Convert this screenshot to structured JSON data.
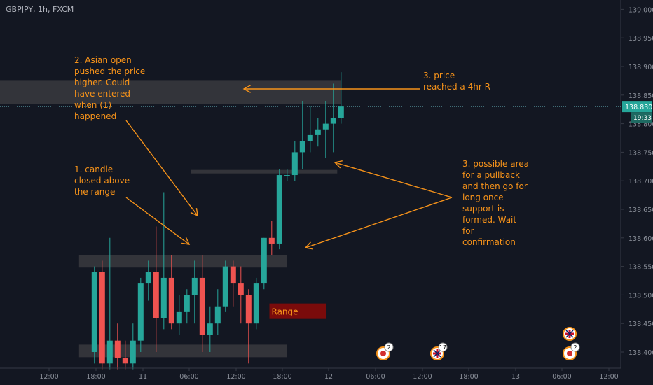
{
  "header": {
    "symbol": "GBPJPY, 1h, FXCM"
  },
  "colors": {
    "background": "#131722",
    "up": "#26a69a",
    "down": "#ef5350",
    "annotation": "#f7931a",
    "zone": "#3a3a3e",
    "range_box": "#7a0b0b",
    "price_line": "#5b9ea8",
    "axis_text": "#8a8f99"
  },
  "chart_data": {
    "type": "candlestick",
    "title": "GBPJPY, 1h, FXCM",
    "ylim": [
      138.37,
      139.02
    ],
    "y_ticks": [
      138.4,
      138.45,
      138.5,
      138.55,
      138.6,
      138.65,
      138.7,
      138.75,
      138.8,
      138.85,
      138.9,
      138.95,
      139.0
    ],
    "y_tick_labels": [
      "138.400",
      "138.450",
      "138.500",
      "138.550",
      "138.600",
      "138.650",
      "138.700",
      "138.750",
      "138.800",
      "138.850",
      "138.900",
      "138.950",
      "139.000"
    ],
    "x_ticks": [
      "12:00",
      "18:00",
      "11",
      "06:00",
      "12:00",
      "18:00",
      "12",
      "06:00",
      "12:00",
      "18:00",
      "13",
      "06:00",
      "12:00"
    ],
    "x_tick_positions": [
      -6,
      0,
      6,
      12,
      18,
      24,
      30,
      36,
      42,
      48,
      54,
      60,
      66
    ],
    "last_price": "138.830",
    "countdown": "19:33",
    "candles": [
      {
        "o": 138.4,
        "h": 138.55,
        "l": 138.38,
        "c": 138.54
      },
      {
        "o": 138.54,
        "h": 138.56,
        "l": 138.37,
        "c": 138.38
      },
      {
        "o": 138.38,
        "h": 138.6,
        "l": 138.37,
        "c": 138.42
      },
      {
        "o": 138.42,
        "h": 138.45,
        "l": 138.37,
        "c": 138.39
      },
      {
        "o": 138.39,
        "h": 138.42,
        "l": 138.37,
        "c": 138.38
      },
      {
        "o": 138.38,
        "h": 138.45,
        "l": 138.37,
        "c": 138.42
      },
      {
        "o": 138.42,
        "h": 138.53,
        "l": 138.4,
        "c": 138.52
      },
      {
        "o": 138.52,
        "h": 138.56,
        "l": 138.49,
        "c": 138.54
      },
      {
        "o": 138.54,
        "h": 138.62,
        "l": 138.4,
        "c": 138.46
      },
      {
        "o": 138.46,
        "h": 138.68,
        "l": 138.44,
        "c": 138.53
      },
      {
        "o": 138.53,
        "h": 138.57,
        "l": 138.44,
        "c": 138.45
      },
      {
        "o": 138.45,
        "h": 138.5,
        "l": 138.43,
        "c": 138.47
      },
      {
        "o": 138.47,
        "h": 138.51,
        "l": 138.45,
        "c": 138.5
      },
      {
        "o": 138.5,
        "h": 138.56,
        "l": 138.45,
        "c": 138.53
      },
      {
        "o": 138.53,
        "h": 138.57,
        "l": 138.4,
        "c": 138.43
      },
      {
        "o": 138.43,
        "h": 138.48,
        "l": 138.4,
        "c": 138.45
      },
      {
        "o": 138.45,
        "h": 138.51,
        "l": 138.43,
        "c": 138.48
      },
      {
        "o": 138.48,
        "h": 138.56,
        "l": 138.47,
        "c": 138.55
      },
      {
        "o": 138.55,
        "h": 138.56,
        "l": 138.48,
        "c": 138.52
      },
      {
        "o": 138.52,
        "h": 138.55,
        "l": 138.45,
        "c": 138.5
      },
      {
        "o": 138.5,
        "h": 138.51,
        "l": 138.38,
        "c": 138.45
      },
      {
        "o": 138.45,
        "h": 138.53,
        "l": 138.44,
        "c": 138.52
      },
      {
        "o": 138.52,
        "h": 138.6,
        "l": 138.51,
        "c": 138.6
      },
      {
        "o": 138.6,
        "h": 138.63,
        "l": 138.57,
        "c": 138.59
      },
      {
        "o": 138.59,
        "h": 138.72,
        "l": 138.58,
        "c": 138.71
      },
      {
        "o": 138.71,
        "h": 138.72,
        "l": 138.7,
        "c": 138.71
      },
      {
        "o": 138.71,
        "h": 138.77,
        "l": 138.7,
        "c": 138.75
      },
      {
        "o": 138.75,
        "h": 138.84,
        "l": 138.72,
        "c": 138.77
      },
      {
        "o": 138.77,
        "h": 138.83,
        "l": 138.75,
        "c": 138.78
      },
      {
        "o": 138.78,
        "h": 138.81,
        "l": 138.76,
        "c": 138.79
      },
      {
        "o": 138.79,
        "h": 138.84,
        "l": 138.74,
        "c": 138.8
      },
      {
        "o": 138.8,
        "h": 138.87,
        "l": 138.75,
        "c": 138.81
      },
      {
        "o": 138.81,
        "h": 138.89,
        "l": 138.8,
        "c": 138.83
      }
    ],
    "zones": [
      {
        "name": "4hr-resistance",
        "y1": 138.835,
        "y2": 138.875,
        "x1": -12.5,
        "x2": 33.5
      },
      {
        "name": "pullback-level",
        "y1": 138.714,
        "y2": 138.719,
        "x1": 14,
        "x2": 33
      },
      {
        "name": "range-top",
        "y1": 138.548,
        "y2": 138.57,
        "x1": -0.5,
        "x2": 26.5
      },
      {
        "name": "range-bottom",
        "y1": 138.391,
        "y2": 138.413,
        "x1": -0.5,
        "x2": 26.5
      }
    ],
    "range_label": "Range",
    "annotations": {
      "note1": [
        "1. candle",
        "closed above",
        "the range"
      ],
      "note2": [
        "2. Asian open",
        "pushed the price",
        "higher. Could",
        "have entered",
        "when (1)",
        "happened"
      ],
      "note3a": [
        "3. price",
        "reached a 4hr R"
      ],
      "note3b": [
        "3. possible area",
        "for a pullback",
        "and then go for",
        "long once",
        "support is",
        "formed. Wait",
        "for",
        "confirmation"
      ]
    },
    "event_markers": [
      {
        "icon": "red-dot-flag-icon",
        "badge": "2"
      },
      {
        "icon": "uk-flag-icon",
        "badge": "17"
      },
      {
        "icon": "uk-flag-icon",
        "badge": ""
      },
      {
        "icon": "red-dot-flag-icon",
        "badge": "2"
      }
    ]
  }
}
